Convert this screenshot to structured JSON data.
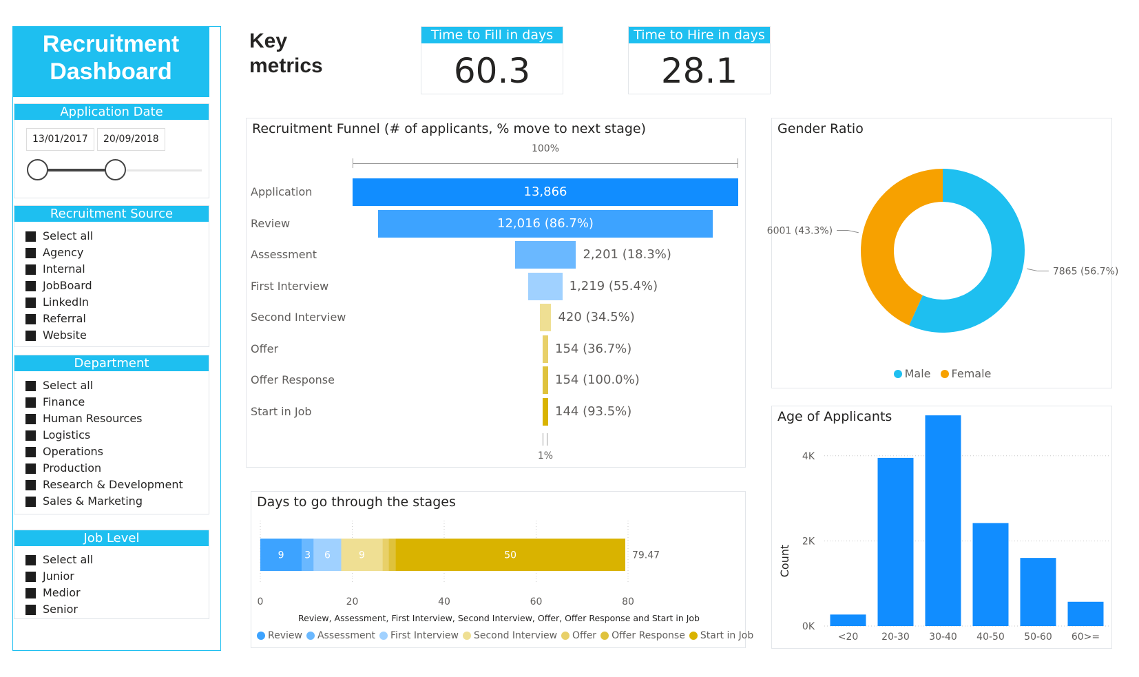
{
  "sidebar": {
    "title": "Recruitment Dashboard",
    "date_slicer": {
      "header": "Application Date",
      "start": "13/01/2017",
      "end": "20/09/2018"
    },
    "source_slicer": {
      "header": "Recruitment Source",
      "options": [
        "Select all",
        "Agency",
        "Internal",
        "JobBoard",
        "LinkedIn",
        "Referral",
        "Website"
      ]
    },
    "department_slicer": {
      "header": "Department",
      "options": [
        "Select all",
        "Finance",
        "Human Resources",
        "Logistics",
        "Operations",
        "Production",
        "Research & Development",
        "Sales & Marketing"
      ]
    },
    "job_level_slicer": {
      "header": "Job Level",
      "options": [
        "Select all",
        "Junior",
        "Medior",
        "Senior"
      ]
    }
  },
  "key_metrics": {
    "title": "Key metrics",
    "cards": [
      {
        "label": "Time to Fill in days",
        "value": "60.3"
      },
      {
        "label": "Time to Hire in days",
        "value": "28.1"
      }
    ]
  },
  "colors": {
    "accent": "#1ebff0",
    "male": "#1ebff0",
    "female": "#f7a100",
    "age_bar": "#118dff"
  },
  "chart_data": [
    {
      "type": "funnel",
      "title": "Recruitment Funnel (# of applicants, % move to next stage)",
      "top_label": "100%",
      "bottom_label": "1%",
      "stages": [
        {
          "label": "Application",
          "value": 13866,
          "display": "13,866",
          "color": "#118dff"
        },
        {
          "label": "Review",
          "value": 12016,
          "display": "12,016 (86.7%)",
          "color": "#3da3ff"
        },
        {
          "label": "Assessment",
          "value": 2201,
          "display": "2,201 (18.3%)",
          "color": "#6ab8ff"
        },
        {
          "label": "First Interview",
          "value": 1219,
          "display": "1,219 (55.4%)",
          "color": "#a0d1ff"
        },
        {
          "label": "Second Interview",
          "value": 420,
          "display": "420 (34.5%)",
          "color": "#efdf93"
        },
        {
          "label": "Offer",
          "value": 154,
          "display": "154 (36.7%)",
          "color": "#e8d069"
        },
        {
          "label": "Offer Response",
          "value": 154,
          "display": "154 (100.0%)",
          "color": "#dfc23c"
        },
        {
          "label": "Start in Job",
          "value": 144,
          "display": "144 (93.5%)",
          "color": "#d9b300"
        }
      ]
    },
    {
      "type": "donut",
      "title": "Gender Ratio",
      "slices": [
        {
          "name": "Male",
          "value": 7865,
          "display": "7865 (56.7%)",
          "color": "#1ebff0"
        },
        {
          "name": "Female",
          "value": 6001,
          "display": "6001 (43.3%)",
          "color": "#f7a100"
        }
      ],
      "legend": [
        "Male",
        "Female"
      ],
      "legend_position": "bottom-center"
    },
    {
      "type": "bar",
      "title": "Days to go through the stages",
      "orientation": "horizontal",
      "stacked": true,
      "x_ticks": [
        "0",
        "20",
        "40",
        "60",
        "80"
      ],
      "xlim": [
        0,
        80
      ],
      "xlabel": "Review, Assessment, First Interview, Second Interview, Offer, Offer Response and Start in Job",
      "total_label": "79.47",
      "series": [
        {
          "name": "Review",
          "value": 9,
          "label": "9",
          "color": "#3da3ff"
        },
        {
          "name": "Assessment",
          "value": 2.6,
          "label": "3",
          "color": "#6ab8ff"
        },
        {
          "name": "First Interview",
          "value": 6,
          "label": "6",
          "color": "#a0d1ff"
        },
        {
          "name": "Second Interview",
          "value": 9,
          "label": "9",
          "color": "#efdf93"
        },
        {
          "name": "Offer",
          "value": 1.3,
          "label": "",
          "color": "#e8d069"
        },
        {
          "name": "Offer Response",
          "value": 1.5,
          "label": "",
          "color": "#dfc23c"
        },
        {
          "name": "Start in Job",
          "value": 50,
          "label": "50",
          "color": "#d9b300"
        }
      ],
      "legend_position": "bottom"
    },
    {
      "type": "bar",
      "title": "Age of Applicants",
      "categories": [
        "<20",
        "20-30",
        "30-40",
        "40-50",
        "50-60",
        "60>="
      ],
      "values": [
        270,
        3950,
        4950,
        2420,
        1600,
        570
      ],
      "ylabel": "Count",
      "ylim": [
        0,
        5000
      ],
      "y_ticks": [
        {
          "value": 0,
          "label": "0K"
        },
        {
          "value": 2000,
          "label": "2K"
        },
        {
          "value": 4000,
          "label": "4K"
        }
      ],
      "grid": true
    }
  ]
}
